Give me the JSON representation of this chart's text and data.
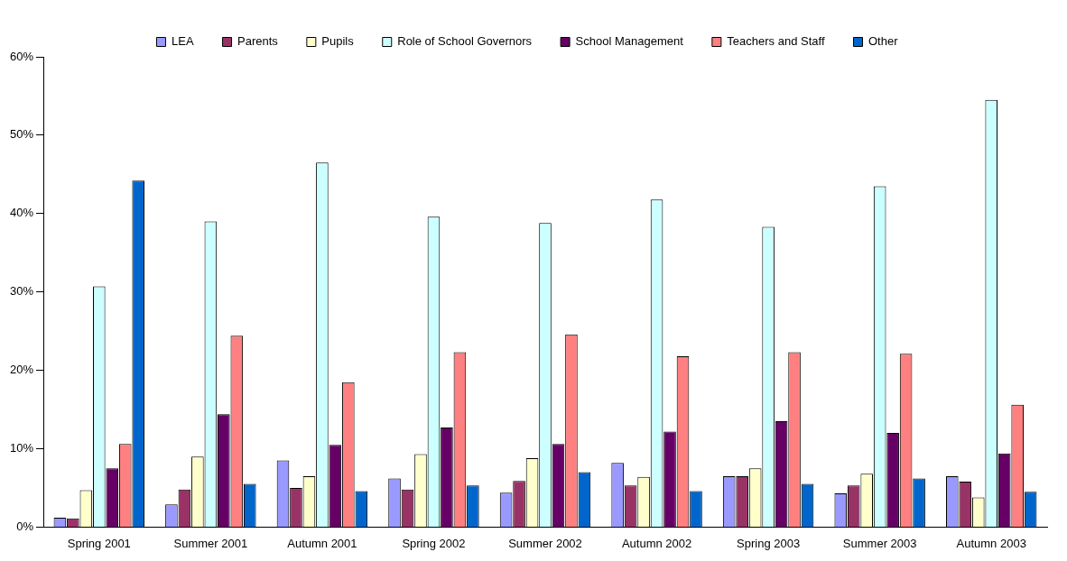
{
  "chart_data": {
    "type": "bar",
    "categories": [
      "Spring 2001",
      "Summer 2001",
      "Autumn 2001",
      "Spring 2002",
      "Summer 2002",
      "Autumn 2002",
      "Spring 2003",
      "Summer 2003",
      "Autumn 2003"
    ],
    "ylim": [
      0,
      60
    ],
    "yticks": [
      {
        "value": 0,
        "label": "0%"
      },
      {
        "value": 10,
        "label": "10%"
      },
      {
        "value": 20,
        "label": "20%"
      },
      {
        "value": 30,
        "label": "30%"
      },
      {
        "value": 40,
        "label": "40%"
      },
      {
        "value": 50,
        "label": "50%"
      },
      {
        "value": 60,
        "label": "60%"
      }
    ],
    "grid": false,
    "legend": "top",
    "series": [
      {
        "name": "LEA",
        "color": "#9999ff",
        "values": [
          1.2,
          2.9,
          8.5,
          6.2,
          4.4,
          8.2,
          6.5,
          4.3,
          6.5
        ]
      },
      {
        "name": "Parents",
        "color": "#993366",
        "values": [
          1.1,
          4.8,
          5.0,
          4.8,
          5.9,
          5.3,
          6.5,
          5.3,
          5.8
        ]
      },
      {
        "name": "Pupils",
        "color": "#ffffcc",
        "values": [
          4.7,
          9.0,
          6.5,
          9.3,
          8.8,
          6.4,
          7.5,
          6.8,
          3.8
        ]
      },
      {
        "name": "Role of School Governors",
        "color": "#ccffff",
        "values": [
          30.7,
          39.0,
          46.5,
          39.6,
          38.8,
          41.8,
          38.3,
          43.5,
          54.5
        ]
      },
      {
        "name": "School Management",
        "color": "#660066",
        "values": [
          7.5,
          14.4,
          10.5,
          12.7,
          10.6,
          12.2,
          13.5,
          12.0,
          9.4
        ]
      },
      {
        "name": "Teachers and Staff",
        "color": "#ff8080",
        "values": [
          10.6,
          24.4,
          18.5,
          22.3,
          24.6,
          21.8,
          22.3,
          22.1,
          15.6
        ]
      },
      {
        "name": "Other",
        "color": "#0066cc",
        "values": [
          44.2,
          5.5,
          4.6,
          5.3,
          7.0,
          4.6,
          5.5,
          6.2,
          4.5
        ]
      }
    ]
  }
}
